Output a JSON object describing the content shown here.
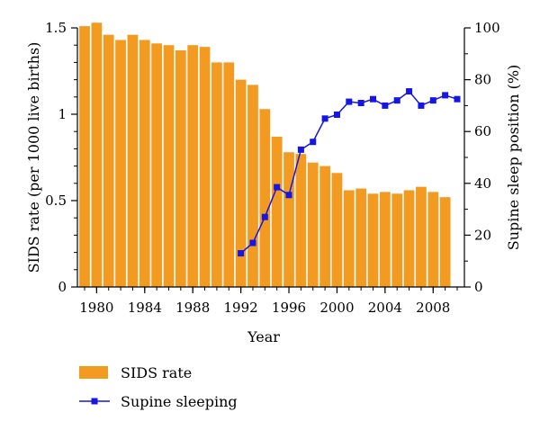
{
  "chart_data": {
    "type": "bar+line",
    "title": "",
    "xlabel": "Year",
    "ylabel_left": "SIDS rate (per 1000 live births)",
    "ylabel_right": "Supine sleep position (%)",
    "x_ticks": [
      "1980",
      "1984",
      "1988",
      "1992",
      "1996",
      "2000",
      "2004",
      "2008"
    ],
    "y_left_ticks": [
      "0",
      "0.5",
      "1",
      "1.5"
    ],
    "y_right_ticks": [
      "0",
      "20",
      "40",
      "60",
      "80",
      "100"
    ],
    "y_left_range": [
      0,
      1.5
    ],
    "y_right_range": [
      0,
      100
    ],
    "x_range": [
      1978.4,
      2010.6
    ],
    "legend_position": "bottom-left",
    "series": [
      {
        "name": "SIDS rate",
        "type": "bar",
        "axis": "left",
        "color": "#F39A21",
        "x": [
          1979,
          1980,
          1981,
          1982,
          1983,
          1984,
          1985,
          1986,
          1987,
          1988,
          1989,
          1990,
          1991,
          1992,
          1993,
          1994,
          1995,
          1996,
          1997,
          1998,
          1999,
          2000,
          2001,
          2002,
          2003,
          2004,
          2005,
          2006,
          2007,
          2008,
          2009
        ],
        "values": [
          1.51,
          1.53,
          1.46,
          1.43,
          1.46,
          1.43,
          1.41,
          1.4,
          1.37,
          1.4,
          1.39,
          1.3,
          1.3,
          1.2,
          1.17,
          1.03,
          0.87,
          0.78,
          0.77,
          0.72,
          0.7,
          0.66,
          0.56,
          0.57,
          0.54,
          0.55,
          0.54,
          0.56,
          0.58,
          0.55,
          0.52
        ]
      },
      {
        "name": "Supine sleeping",
        "type": "line",
        "axis": "right",
        "color": "#1515E6",
        "marker": "square",
        "x": [
          1992,
          1993,
          1994,
          1995,
          1996,
          1997,
          1998,
          1999,
          2000,
          2001,
          2002,
          2003,
          2004,
          2005,
          2006,
          2007,
          2008,
          2009,
          2010
        ],
        "values": [
          13,
          17,
          27,
          38.5,
          35.5,
          53,
          56,
          65,
          66.5,
          71.5,
          71,
          72.5,
          70,
          72,
          75.5,
          70,
          72,
          74,
          72.5
        ]
      }
    ]
  }
}
